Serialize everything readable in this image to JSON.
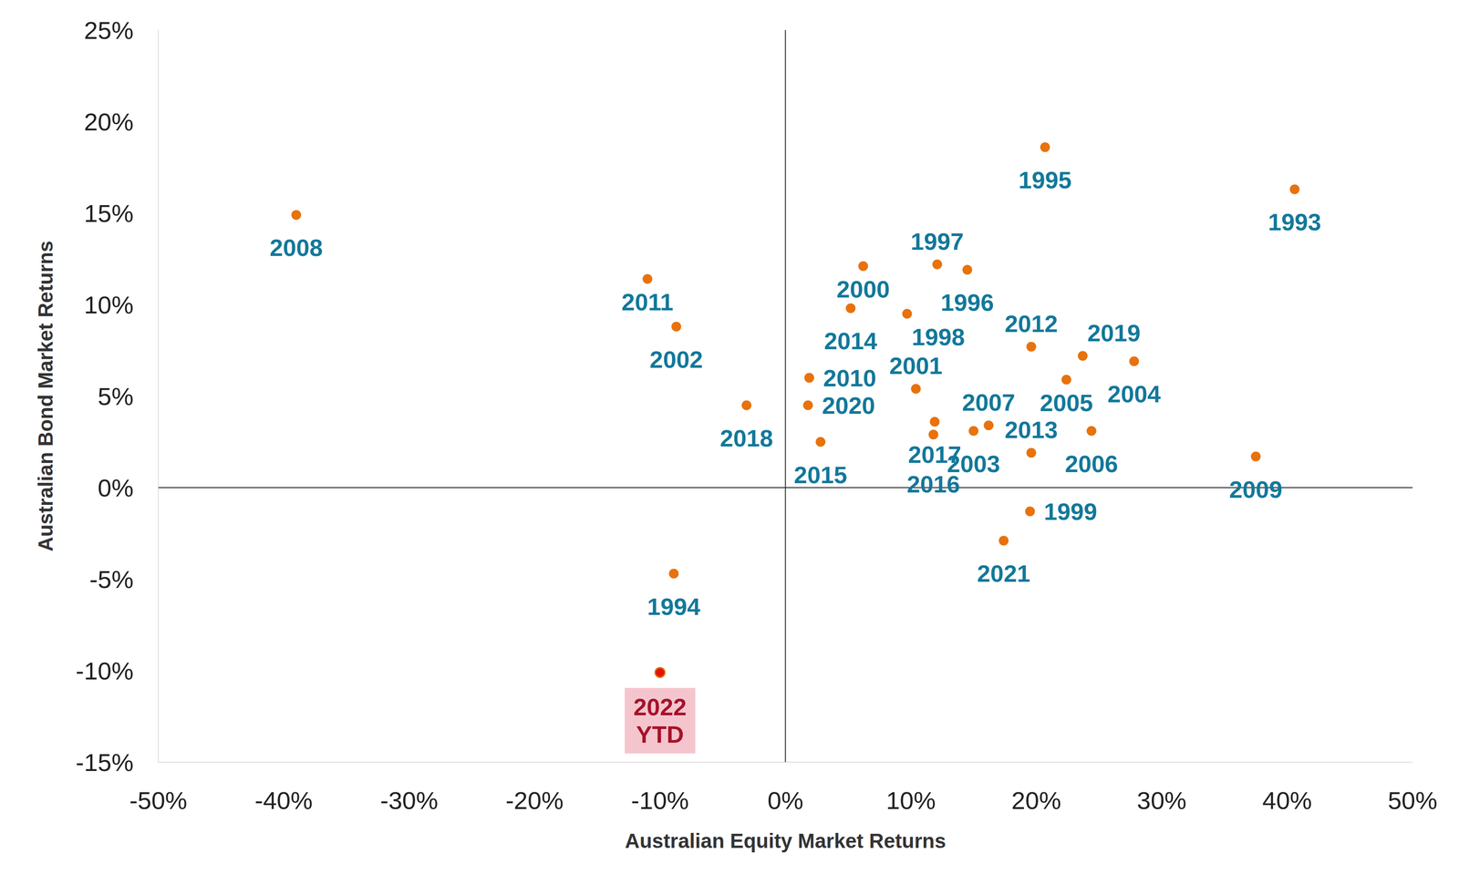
{
  "chart_data": {
    "type": "scatter",
    "x_label": "Australian Equity Market Returns",
    "y_label": "Australian Bond Market Returns",
    "labels": [
      "2008",
      "1995",
      "1993",
      "2011",
      "2002",
      "2000",
      "1997",
      "1996",
      "2014",
      "1998",
      "2010",
      "2020",
      "2018",
      "2015",
      "2001",
      "2012",
      "2019",
      "2004",
      "2005",
      "2017",
      "2016",
      "2007",
      "2003",
      "2006",
      "2013",
      "2009",
      "1999",
      "2021",
      "1994",
      "2022 YTD"
    ],
    "x": [
      -39.0,
      20.7,
      40.6,
      -11.0,
      -8.7,
      6.2,
      12.1,
      14.5,
      5.2,
      9.7,
      1.9,
      1.8,
      -3.1,
      2.8,
      10.4,
      19.6,
      23.7,
      27.8,
      22.4,
      11.9,
      11.8,
      16.2,
      15.0,
      24.4,
      19.6,
      37.5,
      19.5,
      17.4,
      -8.9,
      -10.0
    ],
    "y": [
      14.9,
      18.6,
      16.3,
      11.4,
      8.8,
      12.1,
      12.2,
      11.9,
      9.8,
      9.5,
      6.0,
      4.5,
      4.5,
      2.5,
      5.4,
      7.7,
      7.2,
      6.9,
      5.9,
      3.6,
      2.9,
      3.4,
      3.1,
      3.1,
      1.9,
      1.7,
      -1.3,
      -2.9,
      -4.7,
      -10.1
    ],
    "colors": [
      "#e8720c",
      "#e8720c",
      "#e8720c",
      "#e8720c",
      "#e8720c",
      "#e8720c",
      "#e8720c",
      "#e8720c",
      "#e8720c",
      "#e8720c",
      "#e8720c",
      "#e8720c",
      "#e8720c",
      "#e8720c",
      "#e8720c",
      "#e8720c",
      "#e8720c",
      "#e8720c",
      "#e8720c",
      "#e8720c",
      "#e8720c",
      "#e8720c",
      "#e8720c",
      "#e8720c",
      "#e8720c",
      "#e8720c",
      "#e8720c",
      "#e8720c",
      "#e8720c",
      "#e3120b"
    ],
    "xlim": [
      -50,
      50
    ],
    "xticks": [
      {
        "value": -50,
        "label": "-50%"
      },
      {
        "value": -40,
        "label": "-40%"
      },
      {
        "value": -30,
        "label": "-30%"
      },
      {
        "value": -20,
        "label": "-20%"
      },
      {
        "value": -10,
        "label": "-10%"
      },
      {
        "value": 0,
        "label": "0%"
      },
      {
        "value": 10,
        "label": "10%"
      },
      {
        "value": 20,
        "label": "20%"
      },
      {
        "value": 30,
        "label": "30%"
      },
      {
        "value": 40,
        "label": "40%"
      },
      {
        "value": 50,
        "label": "50%"
      }
    ],
    "ylim": [
      -15,
      25
    ],
    "yticks": [
      {
        "value": -15,
        "label": "-15%"
      },
      {
        "value": -10,
        "label": "-10%"
      },
      {
        "value": -5,
        "label": "-5%"
      },
      {
        "value": 0,
        "label": "0%"
      },
      {
        "value": 5,
        "label": "5%"
      },
      {
        "value": 10,
        "label": "10%"
      },
      {
        "value": 15,
        "label": "15%"
      },
      {
        "value": 20,
        "label": "20%"
      },
      {
        "value": 25,
        "label": "25%"
      }
    ],
    "grid": false
  }
}
